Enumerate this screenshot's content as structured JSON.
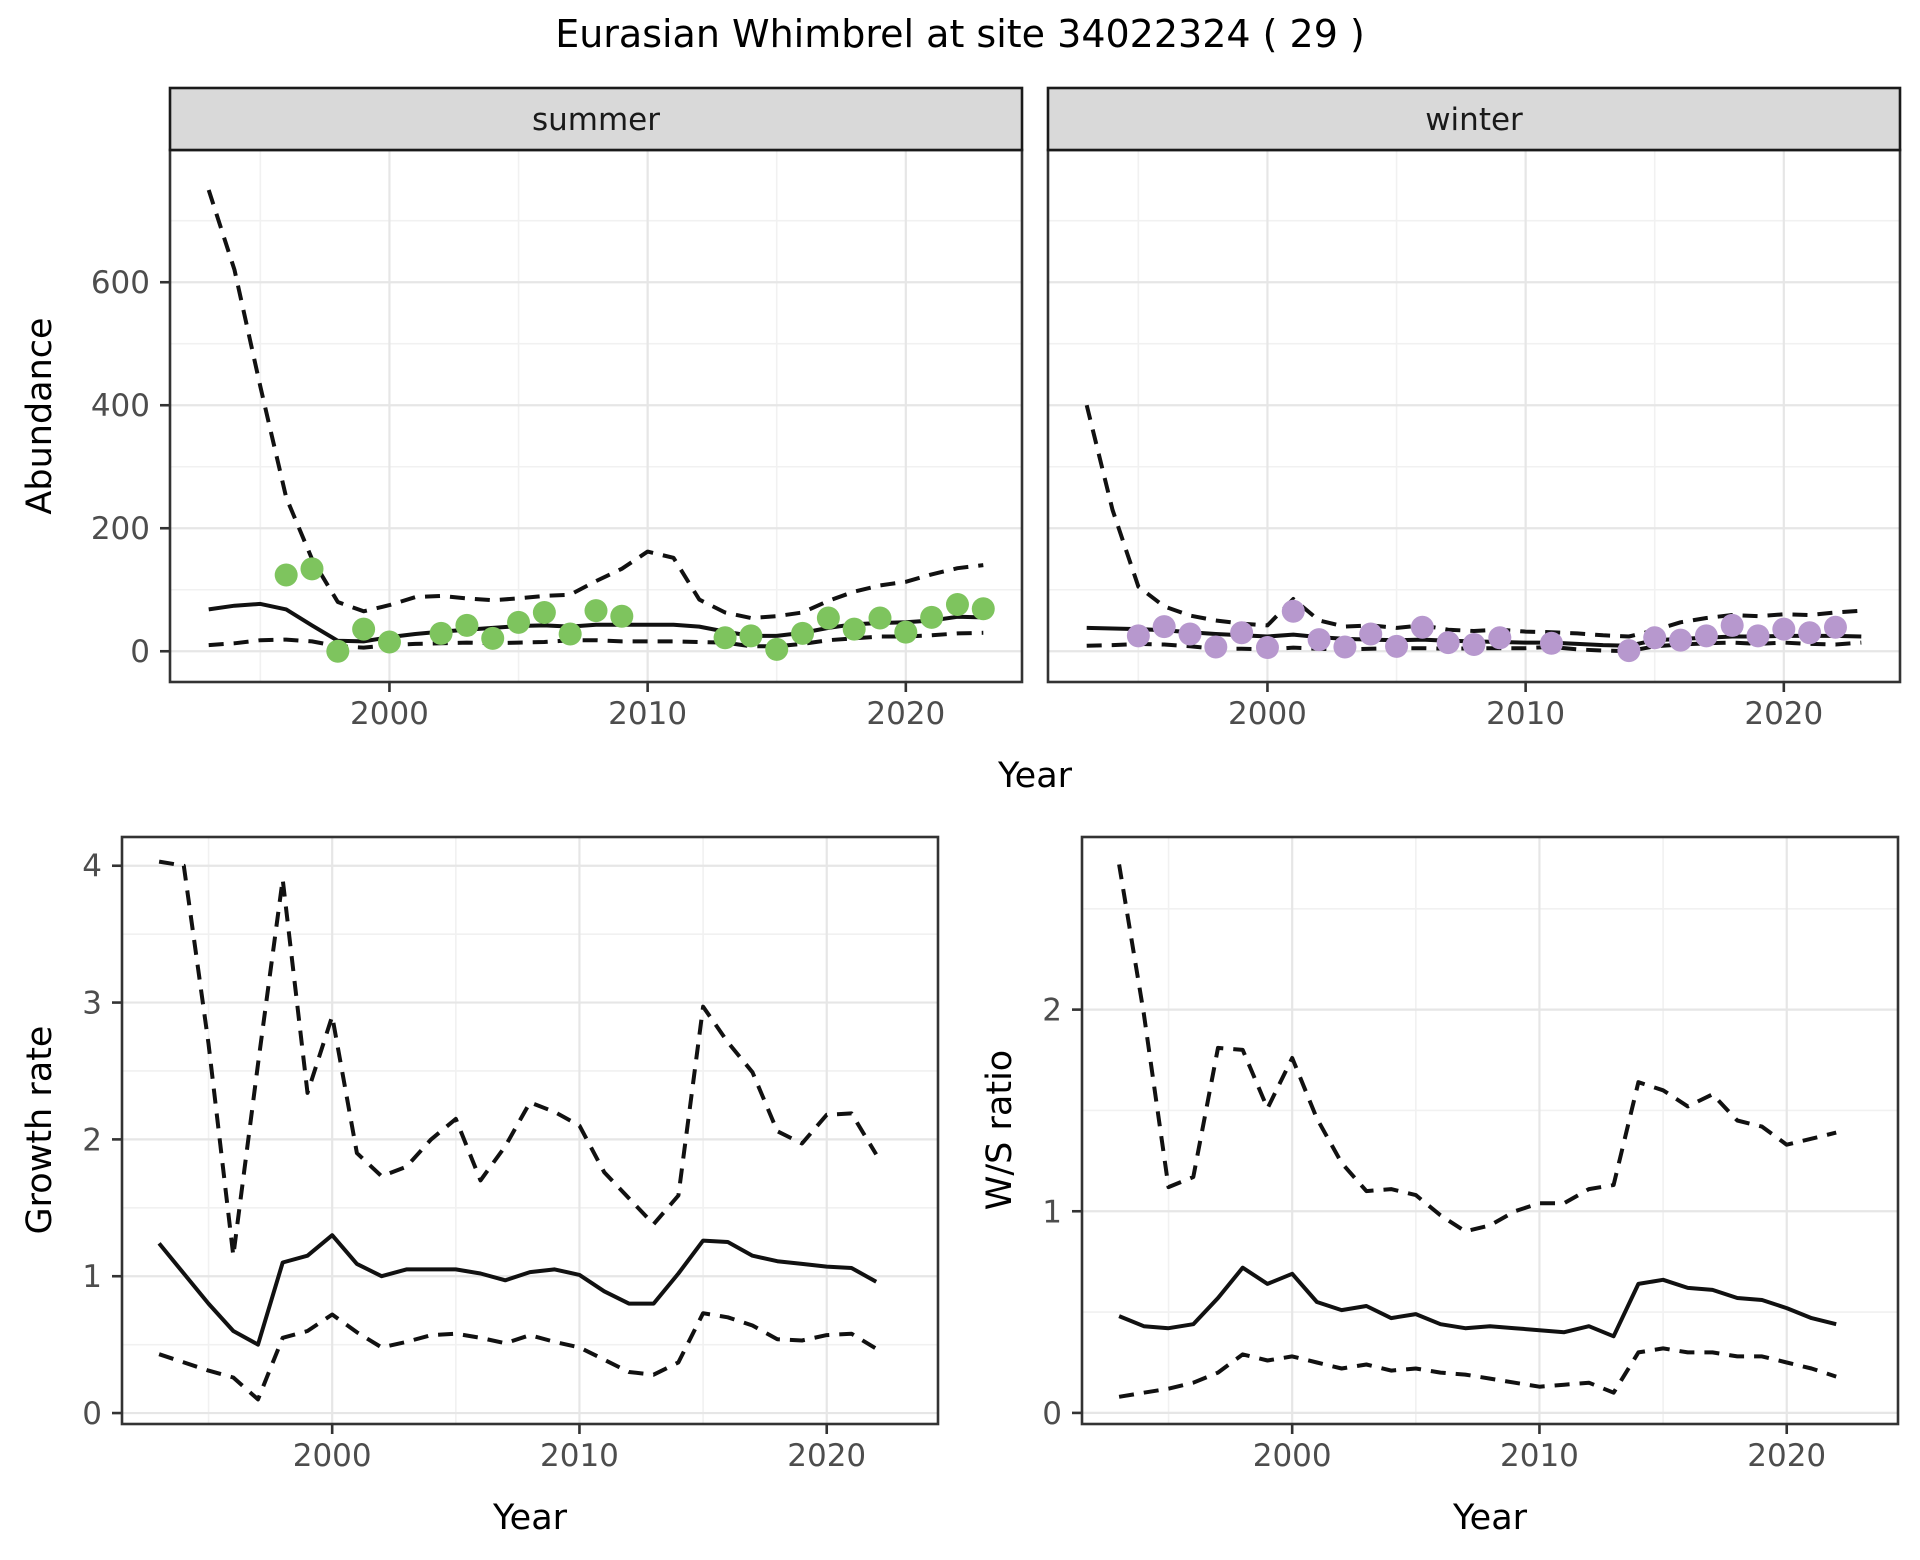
{
  "title": "Eurasian Whimbrel at site 34022324 ( 29 )",
  "colors": {
    "summer_points": "#7EC45E",
    "winter_points": "#B798CE",
    "line": "#111111",
    "strip_bg": "#D9D9D9",
    "strip_border": "#1A1A1A",
    "panel_border": "#333333",
    "grid_major": "#E6E6E6",
    "grid_minor": "#F1F1F1",
    "tick_label": "#4D4D4D"
  },
  "chart_data": [
    {
      "id": "abundance_summer",
      "type": "line",
      "facet_label": "summer",
      "xlabel": "Year",
      "ylabel": "Abundance",
      "xlim": [
        1991.5,
        2024.5
      ],
      "ylim": [
        -50,
        815
      ],
      "x_ticks": [
        2000,
        2010,
        2020
      ],
      "y_ticks": [
        0,
        200,
        400,
        600
      ],
      "grid": true,
      "legend": "none",
      "x": [
        1993,
        1994,
        1995,
        1996,
        1997,
        1998,
        1999,
        2000,
        2001,
        2002,
        2003,
        2004,
        2005,
        2006,
        2007,
        2008,
        2009,
        2010,
        2011,
        2012,
        2013,
        2014,
        2015,
        2016,
        2017,
        2018,
        2019,
        2020,
        2021,
        2022,
        2023
      ],
      "series": [
        {
          "name": "modelled median",
          "style": "solid",
          "values": [
            68,
            74,
            77,
            68,
            42,
            17,
            16,
            23,
            28,
            32,
            35,
            38,
            41,
            42,
            40,
            43,
            43,
            43,
            43,
            40,
            32,
            25,
            25,
            30,
            38,
            44,
            46,
            47,
            50,
            56,
            55
          ]
        },
        {
          "name": "upper 95% CI",
          "style": "dashed",
          "values": [
            750,
            620,
            430,
            250,
            150,
            80,
            65,
            75,
            88,
            90,
            86,
            83,
            86,
            90,
            92,
            114,
            134,
            162,
            152,
            84,
            63,
            54,
            57,
            63,
            82,
            97,
            107,
            113,
            125,
            135,
            140
          ]
        },
        {
          "name": "lower 95% CI",
          "style": "dashed",
          "values": [
            10,
            13,
            18,
            19,
            16,
            8,
            6,
            10,
            12,
            13,
            14,
            13,
            14,
            15,
            18,
            18,
            16,
            16,
            16,
            15,
            14,
            8,
            8,
            12,
            18,
            21,
            24,
            24,
            26,
            29,
            30
          ]
        }
      ],
      "points": {
        "name": "observed counts",
        "color_key": "summer_points",
        "x": [
          1996,
          1997,
          1998,
          1999,
          2000,
          2002,
          2003,
          2004,
          2005,
          2006,
          2007,
          2008,
          2009,
          2013,
          2014,
          2015,
          2016,
          2017,
          2018,
          2019,
          2020,
          2021,
          2022,
          2023
        ],
        "y": [
          124,
          134,
          0,
          36,
          15,
          29,
          42,
          21,
          47,
          63,
          28,
          66,
          57,
          22,
          25,
          3,
          29,
          54,
          36,
          54,
          31,
          55,
          76,
          69
        ]
      }
    },
    {
      "id": "abundance_winter",
      "type": "line",
      "facet_label": "winter",
      "xlabel": "Year",
      "ylabel": "Abundance",
      "xlim": [
        1991.5,
        2024.5
      ],
      "ylim": [
        -50,
        815
      ],
      "x_ticks": [
        2000,
        2010,
        2020
      ],
      "y_ticks": [
        0,
        200,
        400,
        600
      ],
      "grid": true,
      "legend": "none",
      "x": [
        1993,
        1994,
        1995,
        1996,
        1997,
        1998,
        1999,
        2000,
        2001,
        2002,
        2003,
        2004,
        2005,
        2006,
        2007,
        2008,
        2009,
        2010,
        2011,
        2012,
        2013,
        2014,
        2015,
        2016,
        2017,
        2018,
        2019,
        2020,
        2021,
        2022,
        2023
      ],
      "series": [
        {
          "name": "modelled median",
          "style": "solid",
          "values": [
            38,
            37,
            36,
            34,
            31,
            28,
            26,
            24,
            27,
            23,
            20,
            19,
            18,
            19,
            17,
            16,
            15,
            14,
            14,
            12,
            10,
            9,
            18,
            20,
            22,
            24,
            24,
            25,
            25,
            25,
            24
          ]
        },
        {
          "name": "upper 95% CI",
          "style": "dashed",
          "values": [
            400,
            230,
            105,
            73,
            58,
            50,
            45,
            42,
            85,
            50,
            40,
            42,
            38,
            42,
            35,
            33,
            35,
            32,
            31,
            29,
            26,
            24,
            34,
            47,
            54,
            59,
            57,
            60,
            59,
            63,
            66
          ]
        },
        {
          "name": "lower 95% CI",
          "style": "dashed",
          "values": [
            9,
            10,
            12,
            11,
            8,
            4,
            4,
            3,
            6,
            4,
            3,
            4,
            5,
            5,
            4,
            5,
            5,
            5,
            7,
            3,
            1,
            0,
            8,
            11,
            13,
            14,
            12,
            14,
            12,
            11,
            14
          ]
        }
      ],
      "points": {
        "name": "observed counts",
        "color_key": "winter_points",
        "x": [
          1995,
          1996,
          1997,
          1998,
          1999,
          2000,
          2001,
          2002,
          2003,
          2004,
          2005,
          2006,
          2007,
          2008,
          2009,
          2011,
          2014,
          2015,
          2016,
          2017,
          2018,
          2019,
          2020,
          2021,
          2022
        ],
        "y": [
          25,
          40,
          28,
          7,
          30,
          6,
          65,
          19,
          7,
          28,
          8,
          39,
          14,
          11,
          22,
          13,
          1,
          22,
          18,
          25,
          42,
          25,
          36,
          30,
          39
        ]
      }
    },
    {
      "id": "growth_rate",
      "type": "line",
      "facet_label": null,
      "xlabel": "Year",
      "ylabel": "Growth rate",
      "xlim": [
        1991.5,
        2024.5
      ],
      "ylim": [
        -0.08,
        4.21
      ],
      "x_ticks": [
        2000,
        2010,
        2020
      ],
      "y_ticks": [
        0,
        1,
        2,
        3,
        4
      ],
      "grid": true,
      "legend": "none",
      "x": [
        1993,
        1994,
        1995,
        1996,
        1997,
        1998,
        1999,
        2000,
        2001,
        2002,
        2003,
        2004,
        2005,
        2006,
        2007,
        2008,
        2009,
        2010,
        2011,
        2012,
        2013,
        2014,
        2015,
        2016,
        2017,
        2018,
        2019,
        2020,
        2021,
        2022
      ],
      "series": [
        {
          "name": "modelled median",
          "style": "solid",
          "values": [
            1.24,
            1.02,
            0.8,
            0.6,
            0.5,
            1.1,
            1.15,
            1.3,
            1.09,
            1.0,
            1.05,
            1.05,
            1.05,
            1.02,
            0.97,
            1.03,
            1.05,
            1.01,
            0.89,
            0.8,
            0.8,
            1.02,
            1.26,
            1.25,
            1.15,
            1.11,
            1.09,
            1.07,
            1.06,
            0.96
          ]
        },
        {
          "name": "upper 95% CI",
          "style": "dashed",
          "values": [
            4.03,
            4.0,
            2.7,
            1.15,
            2.55,
            3.9,
            2.34,
            2.9,
            1.9,
            1.73,
            1.8,
            2.0,
            2.15,
            1.7,
            1.95,
            2.27,
            2.2,
            2.1,
            1.76,
            1.57,
            1.38,
            1.59,
            2.97,
            2.71,
            2.49,
            2.06,
            1.97,
            2.18,
            2.19,
            1.89
          ]
        },
        {
          "name": "lower 95% CI",
          "style": "dashed",
          "values": [
            0.43,
            0.37,
            0.31,
            0.26,
            0.1,
            0.55,
            0.6,
            0.72,
            0.59,
            0.48,
            0.52,
            0.57,
            0.58,
            0.55,
            0.51,
            0.57,
            0.52,
            0.48,
            0.39,
            0.3,
            0.28,
            0.37,
            0.73,
            0.7,
            0.64,
            0.54,
            0.53,
            0.57,
            0.58,
            0.47
          ]
        }
      ],
      "points": null
    },
    {
      "id": "ws_ratio",
      "type": "line",
      "facet_label": null,
      "xlabel": "Year",
      "ylabel": "W/S ratio",
      "xlim": [
        1991.5,
        2024.5
      ],
      "ylim": [
        -0.055,
        2.856
      ],
      "x_ticks": [
        2000,
        2010,
        2020
      ],
      "y_ticks": [
        0,
        1,
        2
      ],
      "grid": true,
      "legend": "none",
      "x": [
        1993,
        1994,
        1995,
        1996,
        1997,
        1998,
        1999,
        2000,
        2001,
        2002,
        2003,
        2004,
        2005,
        2006,
        2007,
        2008,
        2009,
        2010,
        2011,
        2012,
        2013,
        2014,
        2015,
        2016,
        2017,
        2018,
        2019,
        2020,
        2021,
        2022
      ],
      "series": [
        {
          "name": "modelled median",
          "style": "solid",
          "values": [
            0.48,
            0.43,
            0.42,
            0.44,
            0.57,
            0.72,
            0.64,
            0.69,
            0.55,
            0.51,
            0.53,
            0.47,
            0.49,
            0.44,
            0.42,
            0.43,
            0.42,
            0.41,
            0.4,
            0.43,
            0.38,
            0.64,
            0.66,
            0.62,
            0.61,
            0.57,
            0.56,
            0.52,
            0.47,
            0.44
          ]
        },
        {
          "name": "upper 95% CI",
          "style": "dashed",
          "values": [
            2.72,
            1.98,
            1.12,
            1.17,
            1.81,
            1.8,
            1.51,
            1.76,
            1.46,
            1.24,
            1.1,
            1.11,
            1.08,
            0.98,
            0.9,
            0.93,
            1.0,
            1.04,
            1.04,
            1.11,
            1.13,
            1.64,
            1.6,
            1.52,
            1.58,
            1.45,
            1.42,
            1.33,
            1.36,
            1.39
          ]
        },
        {
          "name": "lower 95% CI",
          "style": "dashed",
          "values": [
            0.08,
            0.1,
            0.12,
            0.15,
            0.2,
            0.29,
            0.26,
            0.28,
            0.25,
            0.22,
            0.24,
            0.21,
            0.22,
            0.2,
            0.19,
            0.17,
            0.15,
            0.13,
            0.14,
            0.15,
            0.1,
            0.3,
            0.32,
            0.3,
            0.3,
            0.28,
            0.28,
            0.25,
            0.22,
            0.18
          ]
        }
      ],
      "points": null
    }
  ]
}
